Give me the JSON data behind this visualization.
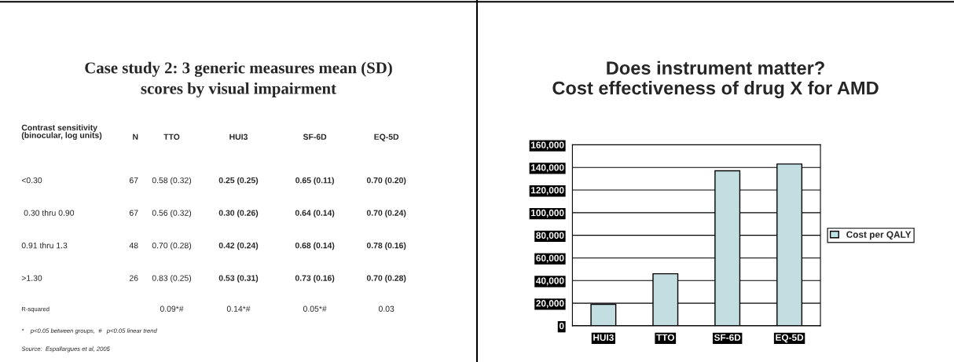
{
  "chart_data": [
    {
      "type": "other",
      "title": "Case study 2: 3 generic measures mean (SD)\nscores by visual impairment",
      "annotations": [
        "Contrast sensitivity\n(binocular, log units)",
        "N",
        "TTO",
        "HUI3",
        "SF-6D",
        "EQ-5D",
        "<0.30",
        "67",
        "0.58 (0.32)",
        "0.25 (0.25)",
        "0.65 (0.11)",
        "0.70 (0.20)",
        " 0.30 thru 0.90",
        "67",
        "0.56 (0.32)",
        "0.30 (0.26)",
        "0.64 (0.14)",
        "0.70 (0.24)",
        "0.91 thru 1.3",
        "48",
        "0.70 (0.28)",
        "0.42 (0.24)",
        "0.68 (0.14)",
        "0.78 (0.16)",
        ">1.30",
        "26",
        "0.83 (0.25)",
        "0.53 (0.31)",
        "0.73 (0.16)",
        "0.70 (0.28)",
        "R-squared",
        "0.09*#",
        "0.14*#",
        "0.05*#",
        "0.03",
        "*    p<0.05 between groups,  #   p<0.05 linear trend",
        "Source:  Espallargues et al, 2005"
      ]
    },
    {
      "type": "bar",
      "title": "Does instrument matter?\nCost effectiveness of drug X for AMD",
      "categories": [
        "HUI3",
        "TTO",
        "SF-6D",
        "EQ-5D"
      ],
      "series": [
        {
          "name": "Cost per QALY",
          "color": "#bde3e5",
          "values": [
            19000,
            46000,
            137000,
            143000
          ]
        }
      ],
      "ylim": [
        0,
        160000
      ],
      "yticks": [
        0,
        {
          "value": 20000,
          "label": "20,000"
        },
        {
          "value": 40000,
          "label": "40,000"
        },
        {
          "value": 60000,
          "label": "60,000"
        },
        {
          "value": 80000,
          "label": "80,000"
        },
        {
          "value": 100000,
          "label": "100,000"
        },
        {
          "value": 120000,
          "label": "120,000"
        },
        {
          "value": 140000,
          "label": "140,000"
        },
        {
          "value": 160000,
          "label": "160,000"
        }
      ],
      "grid": "y",
      "legend": "right"
    }
  ]
}
